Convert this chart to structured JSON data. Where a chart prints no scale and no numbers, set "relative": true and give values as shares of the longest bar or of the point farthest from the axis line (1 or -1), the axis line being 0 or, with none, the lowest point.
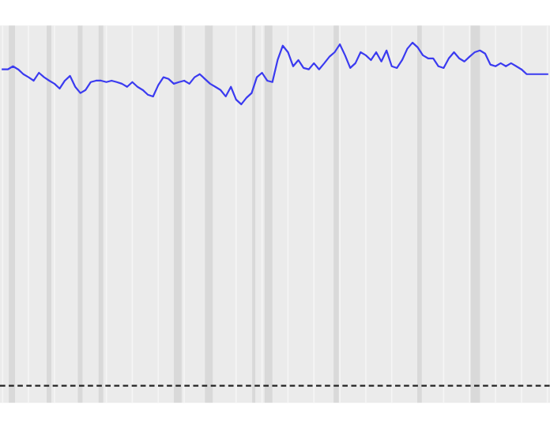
{
  "chart_data": {
    "type": "line",
    "relative": true,
    "categories": [
      null,
      null,
      null,
      null,
      null,
      null,
      null,
      null,
      null,
      null,
      null,
      null,
      null,
      null,
      null,
      null,
      null,
      null,
      null,
      null,
      null,
      null,
      null,
      null,
      null,
      null,
      null,
      null,
      null,
      null,
      null,
      null,
      null,
      null,
      null,
      null,
      null,
      null,
      null,
      null,
      null,
      null,
      null,
      null,
      null,
      null,
      null,
      null,
      null,
      null,
      null,
      null,
      null,
      null,
      null,
      null,
      null,
      null,
      null,
      null,
      null,
      null,
      null,
      null,
      null,
      null,
      null,
      null,
      null,
      null,
      null,
      null,
      null,
      null,
      null,
      null,
      null,
      null,
      null,
      null,
      null,
      null,
      null,
      null,
      null,
      null,
      null,
      null,
      null,
      null,
      null,
      null,
      null,
      null,
      null,
      null,
      null,
      null,
      null,
      null,
      null,
      null,
      null,
      null,
      null,
      null
    ],
    "series": [
      {
        "color": "#3b3bf0",
        "values": [
          0.922,
          0.922,
          0.931,
          0.922,
          0.908,
          0.899,
          0.889,
          0.912,
          0.899,
          0.889,
          0.88,
          0.866,
          0.889,
          0.903,
          0.871,
          0.853,
          0.862,
          0.885,
          0.889,
          0.889,
          0.885,
          0.889,
          0.885,
          0.88,
          0.871,
          0.885,
          0.871,
          0.862,
          0.848,
          0.843,
          0.876,
          0.899,
          0.894,
          0.88,
          0.885,
          0.889,
          0.88,
          0.899,
          0.908,
          0.894,
          0.88,
          0.871,
          0.862,
          0.843,
          0.871,
          0.834,
          0.82,
          0.839,
          0.853,
          0.899,
          0.912,
          0.889,
          0.885,
          0.949,
          0.991,
          0.972,
          0.931,
          0.949,
          0.926,
          0.922,
          0.94,
          0.922,
          0.94,
          0.959,
          0.972,
          0.995,
          0.963,
          0.926,
          0.94,
          0.972,
          0.963,
          0.949,
          0.972,
          0.945,
          0.977,
          0.931,
          0.926,
          0.949,
          0.982,
          1,
          0.986,
          0.963,
          0.954,
          0.954,
          0.931,
          0.926,
          0.954,
          0.972,
          0.954,
          0.945,
          0.959,
          0.972,
          0.977,
          0.968,
          0.936,
          0.931,
          0.94,
          0.931,
          0.94,
          0.931,
          0.922,
          0.908,
          0.908,
          0.908,
          0.908,
          0.908
        ]
      }
    ],
    "ref_lines": [
      {
        "axis": "y",
        "value": 0,
        "line_style": "dashed",
        "color": "#222222"
      }
    ],
    "grid": "x",
    "legend": false
  }
}
